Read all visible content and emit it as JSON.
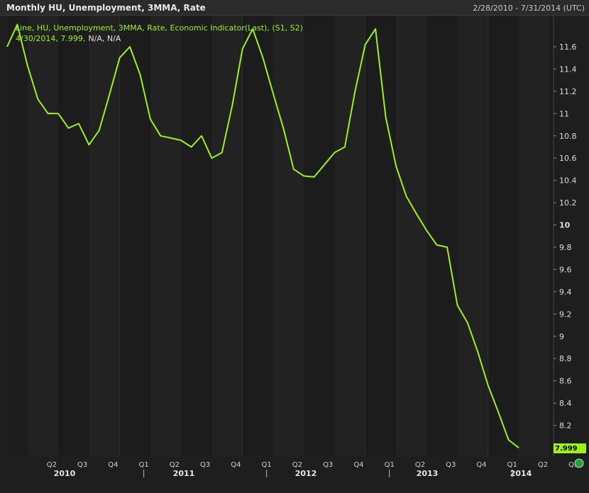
{
  "window": {
    "title": "Monthly HU, Unemployment, 3MMA, Rate",
    "date_range": "2/28/2010 - 7/31/2014 (UTC)"
  },
  "legend": {
    "line1": "Line, HU, Unemployment, 3MMA, Rate, Economic Indicator(Last), (S1, S2)",
    "line2_values": "4/30/2014, 7.999,",
    "line2_na": "N/A, N/A"
  },
  "last_value_label": "7.999",
  "colors": {
    "line": "#9ef01a",
    "background": "#1e1e1e",
    "plot_band_dark": "#1c1c1c",
    "plot_band_light": "#222222",
    "status_dot": "#1fa33a"
  },
  "chart_data": {
    "type": "line",
    "series": [
      {
        "color": "#9ef01a",
        "x": [
          "2010-02",
          "2010-03",
          "2010-04",
          "2010-05",
          "2010-06",
          "2010-07",
          "2010-08",
          "2010-09",
          "2010-10",
          "2010-11",
          "2010-12",
          "2011-01",
          "2011-02",
          "2011-03",
          "2011-04",
          "2011-05",
          "2011-06",
          "2011-07",
          "2011-08",
          "2011-09",
          "2011-10",
          "2011-11",
          "2011-12",
          "2012-01",
          "2012-02",
          "2012-03",
          "2012-04",
          "2012-05",
          "2012-06",
          "2012-07",
          "2012-08",
          "2012-09",
          "2012-10",
          "2012-11",
          "2012-12",
          "2013-01",
          "2013-02",
          "2013-03",
          "2013-04",
          "2013-05",
          "2013-06",
          "2013-07",
          "2013-08",
          "2013-09",
          "2013-10",
          "2013-11",
          "2013-12",
          "2014-01",
          "2014-02",
          "2014-03",
          "2014-04"
        ],
        "values": [
          11.6,
          11.8,
          11.43,
          11.13,
          11.0,
          11.0,
          10.87,
          10.91,
          10.72,
          10.85,
          11.17,
          11.5,
          11.6,
          11.35,
          10.95,
          10.8,
          10.78,
          10.76,
          10.7,
          10.8,
          10.6,
          10.65,
          11.07,
          11.58,
          11.76,
          11.5,
          11.18,
          10.87,
          10.5,
          10.44,
          10.43,
          10.54,
          10.65,
          10.7,
          11.2,
          11.62,
          11.76,
          10.97,
          10.53,
          10.26,
          10.1,
          9.95,
          9.82,
          9.8,
          9.28,
          9.12,
          8.86,
          8.56,
          8.32,
          8.07,
          7.999
        ]
      }
    ],
    "y_ticks": [
      "8.2",
      "8.4",
      "8.6",
      "8.8",
      "9",
      "9.2",
      "9.4",
      "9.6",
      "9.8",
      "10",
      "10.2",
      "10.4",
      "10.6",
      "10.8",
      "11",
      "11.2",
      "11.4",
      "11.6"
    ],
    "ylim": [
      7.93,
      11.93
    ],
    "x_ticks": [
      "Q2",
      "Q3",
      "Q4",
      "Q1",
      "Q2",
      "Q3",
      "Q4",
      "Q1",
      "Q2",
      "Q3",
      "Q4",
      "Q1",
      "Q2",
      "Q3",
      "Q4",
      "Q1",
      "Q2",
      "Q3"
    ],
    "years": [
      "2010",
      "2011",
      "2012",
      "2013",
      "2014"
    ],
    "grid": false,
    "axis_position": "right"
  }
}
